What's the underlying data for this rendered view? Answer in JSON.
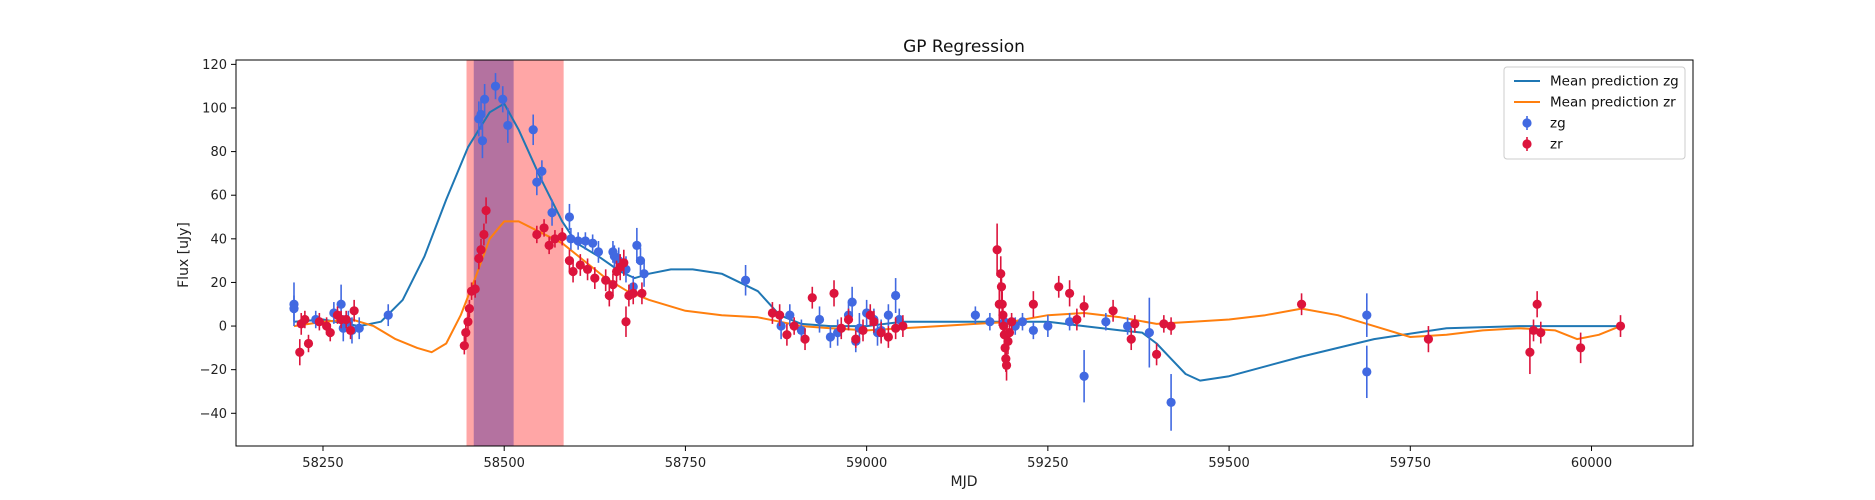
{
  "chart_data": {
    "type": "scatter",
    "title": "GP Regression",
    "xlabel": "MJD",
    "ylabel": "Flux [uJy]",
    "xlim": [
      58130,
      60140
    ],
    "ylim": [
      -55,
      122
    ],
    "xticks": [
      58250,
      58500,
      58750,
      59000,
      59250,
      59500,
      59750,
      60000
    ],
    "yticks": [
      -40,
      -20,
      0,
      20,
      40,
      60,
      80,
      100,
      120
    ],
    "grid": false,
    "legend": {
      "position": "top-right",
      "entries": [
        {
          "label": "Mean prediction zg",
          "kind": "line",
          "color": "#1f77b4"
        },
        {
          "label": "Mean prediction zr",
          "kind": "line",
          "color": "#ff7f0e"
        },
        {
          "label": "zg",
          "kind": "marker",
          "color": "#4169e1"
        },
        {
          "label": "zr",
          "kind": "marker",
          "color": "#dc143c"
        }
      ]
    },
    "spans": [
      {
        "x0": 58448,
        "x1": 58582,
        "color": "#ff6b6b",
        "opacity": 0.6
      },
      {
        "x0": 58458,
        "x1": 58513,
        "color": "#6a3d9a",
        "opacity": 0.5
      }
    ],
    "series": [
      {
        "name": "Mean prediction zg",
        "kind": "line",
        "color": "#1f77b4",
        "points": [
          [
            58210,
            2
          ],
          [
            58250,
            3
          ],
          [
            58300,
            0
          ],
          [
            58330,
            2
          ],
          [
            58360,
            12
          ],
          [
            58390,
            32
          ],
          [
            58420,
            58
          ],
          [
            58450,
            82
          ],
          [
            58480,
            98
          ],
          [
            58500,
            102
          ],
          [
            58520,
            90
          ],
          [
            58550,
            68
          ],
          [
            58580,
            48
          ],
          [
            58600,
            38
          ],
          [
            58630,
            32
          ],
          [
            58660,
            25
          ],
          [
            58680,
            22
          ],
          [
            58700,
            24
          ],
          [
            58730,
            26
          ],
          [
            58760,
            26
          ],
          [
            58800,
            24
          ],
          [
            58850,
            16
          ],
          [
            58880,
            5
          ],
          [
            58910,
            1
          ],
          [
            58950,
            0
          ],
          [
            59000,
            0
          ],
          [
            59050,
            2
          ],
          [
            59100,
            2
          ],
          [
            59150,
            2
          ],
          [
            59200,
            2
          ],
          [
            59250,
            2
          ],
          [
            59300,
            0
          ],
          [
            59350,
            -2
          ],
          [
            59380,
            -3
          ],
          [
            59400,
            -8
          ],
          [
            59420,
            -15
          ],
          [
            59440,
            -22
          ],
          [
            59460,
            -25
          ],
          [
            59500,
            -23
          ],
          [
            59600,
            -14
          ],
          [
            59700,
            -6
          ],
          [
            59800,
            -1
          ],
          [
            59900,
            0
          ],
          [
            60040,
            0
          ]
        ]
      },
      {
        "name": "Mean prediction zr",
        "kind": "line",
        "color": "#ff7f0e",
        "points": [
          [
            58210,
            0
          ],
          [
            58250,
            2
          ],
          [
            58290,
            3
          ],
          [
            58320,
            0
          ],
          [
            58350,
            -6
          ],
          [
            58380,
            -10
          ],
          [
            58400,
            -12
          ],
          [
            58420,
            -8
          ],
          [
            58440,
            5
          ],
          [
            58460,
            22
          ],
          [
            58480,
            40
          ],
          [
            58500,
            48
          ],
          [
            58520,
            48
          ],
          [
            58550,
            43
          ],
          [
            58580,
            38
          ],
          [
            58610,
            30
          ],
          [
            58640,
            22
          ],
          [
            58670,
            16
          ],
          [
            58700,
            12
          ],
          [
            58750,
            7
          ],
          [
            58800,
            5
          ],
          [
            58850,
            4
          ],
          [
            58880,
            2
          ],
          [
            58910,
            0
          ],
          [
            58950,
            -1
          ],
          [
            59000,
            -2
          ],
          [
            59050,
            -1
          ],
          [
            59100,
            0
          ],
          [
            59150,
            1
          ],
          [
            59200,
            2
          ],
          [
            59250,
            5
          ],
          [
            59300,
            6
          ],
          [
            59350,
            4
          ],
          [
            59400,
            1
          ],
          [
            59450,
            2
          ],
          [
            59500,
            3
          ],
          [
            59550,
            5
          ],
          [
            59600,
            8
          ],
          [
            59650,
            5
          ],
          [
            59700,
            0
          ],
          [
            59750,
            -5
          ],
          [
            59800,
            -4
          ],
          [
            59850,
            -2
          ],
          [
            59900,
            -1
          ],
          [
            59950,
            -2
          ],
          [
            59980,
            -6
          ],
          [
            60010,
            -4
          ],
          [
            60040,
            0
          ]
        ]
      },
      {
        "name": "zg",
        "kind": "errorbar",
        "color": "#4169e1",
        "points": [
          [
            58210,
            10,
            10
          ],
          [
            58210,
            8,
            6
          ],
          [
            58240,
            3,
            4
          ],
          [
            58265,
            6,
            5
          ],
          [
            58275,
            10,
            9
          ],
          [
            58278,
            -1,
            6
          ],
          [
            58285,
            2,
            5
          ],
          [
            58290,
            -2,
            6
          ],
          [
            58300,
            -1,
            5
          ],
          [
            58340,
            5,
            5
          ],
          [
            58465,
            95,
            8
          ],
          [
            58468,
            97,
            7
          ],
          [
            58470,
            85,
            8
          ],
          [
            58473,
            104,
            7
          ],
          [
            58488,
            110,
            6
          ],
          [
            58498,
            104,
            6
          ],
          [
            58505,
            92,
            8
          ],
          [
            58540,
            90,
            7
          ],
          [
            58545,
            66,
            6
          ],
          [
            58552,
            71,
            5
          ],
          [
            58566,
            52,
            6
          ],
          [
            58590,
            50,
            6
          ],
          [
            58592,
            40,
            5
          ],
          [
            58602,
            39,
            4
          ],
          [
            58612,
            39,
            4
          ],
          [
            58622,
            38,
            4
          ],
          [
            58630,
            34,
            5
          ],
          [
            58650,
            34,
            5
          ],
          [
            58652,
            32,
            5
          ],
          [
            58658,
            30,
            6
          ],
          [
            58668,
            26,
            6
          ],
          [
            58678,
            18,
            5
          ],
          [
            58683,
            37,
            8
          ],
          [
            58688,
            30,
            6
          ],
          [
            58693,
            24,
            6
          ],
          [
            58833,
            21,
            7
          ],
          [
            58882,
            0,
            6
          ],
          [
            58894,
            5,
            5
          ],
          [
            58910,
            -2,
            5
          ],
          [
            58935,
            3,
            6
          ],
          [
            58950,
            -5,
            5
          ],
          [
            58960,
            -3,
            6
          ],
          [
            58975,
            5,
            6
          ],
          [
            58980,
            11,
            7
          ],
          [
            58985,
            -7,
            5
          ],
          [
            58990,
            -1,
            7
          ],
          [
            59000,
            6,
            6
          ],
          [
            59010,
            3,
            5
          ],
          [
            59015,
            -3,
            6
          ],
          [
            59020,
            -2,
            5
          ],
          [
            59030,
            5,
            5
          ],
          [
            59040,
            14,
            8
          ],
          [
            59045,
            3,
            5
          ],
          [
            59150,
            5,
            4
          ],
          [
            59170,
            2,
            4
          ],
          [
            59190,
            2,
            4
          ],
          [
            59205,
            0,
            4
          ],
          [
            59215,
            2,
            4
          ],
          [
            59230,
            -2,
            4
          ],
          [
            59250,
            0,
            5
          ],
          [
            59280,
            2,
            4
          ],
          [
            59300,
            -23,
            12
          ],
          [
            59330,
            2,
            4
          ],
          [
            59360,
            0,
            4
          ],
          [
            59390,
            -3,
            16
          ],
          [
            59420,
            -35,
            13
          ],
          [
            59690,
            5,
            10
          ],
          [
            59690,
            -21,
            12
          ]
        ]
      },
      {
        "name": "zr",
        "kind": "errorbar",
        "color": "#dc143c",
        "points": [
          [
            58218,
            -12,
            6
          ],
          [
            58220,
            1,
            5
          ],
          [
            58225,
            3,
            4
          ],
          [
            58230,
            -8,
            4
          ],
          [
            58245,
            2,
            4
          ],
          [
            58255,
            0,
            4
          ],
          [
            58260,
            -3,
            4
          ],
          [
            58270,
            5,
            4
          ],
          [
            58275,
            3,
            4
          ],
          [
            58282,
            3,
            4
          ],
          [
            58288,
            -2,
            4
          ],
          [
            58293,
            7,
            5
          ],
          [
            58445,
            -9,
            4
          ],
          [
            58447,
            -3,
            5
          ],
          [
            58450,
            2,
            4
          ],
          [
            58452,
            8,
            4
          ],
          [
            58455,
            16,
            4
          ],
          [
            58460,
            17,
            4
          ],
          [
            58465,
            31,
            5
          ],
          [
            58468,
            35,
            5
          ],
          [
            58472,
            42,
            5
          ],
          [
            58475,
            53,
            6
          ],
          [
            58545,
            42,
            4
          ],
          [
            58555,
            45,
            4
          ],
          [
            58562,
            37,
            4
          ],
          [
            58570,
            40,
            4
          ],
          [
            58580,
            41,
            4
          ],
          [
            58590,
            30,
            5
          ],
          [
            58595,
            25,
            5
          ],
          [
            58605,
            28,
            5
          ],
          [
            58615,
            26,
            5
          ],
          [
            58625,
            22,
            5
          ],
          [
            58640,
            21,
            5
          ],
          [
            58645,
            14,
            5
          ],
          [
            58650,
            19,
            5
          ],
          [
            58655,
            25,
            5
          ],
          [
            58660,
            27,
            6
          ],
          [
            58665,
            29,
            6
          ],
          [
            58668,
            2,
            7
          ],
          [
            58672,
            14,
            5
          ],
          [
            58678,
            15,
            5
          ],
          [
            58690,
            15,
            5
          ],
          [
            58870,
            6,
            5
          ],
          [
            58880,
            5,
            5
          ],
          [
            58890,
            -4,
            5
          ],
          [
            58900,
            0,
            4
          ],
          [
            58915,
            -6,
            5
          ],
          [
            58925,
            13,
            5
          ],
          [
            58955,
            15,
            6
          ],
          [
            58965,
            -1,
            5
          ],
          [
            58975,
            3,
            5
          ],
          [
            58985,
            -6,
            4
          ],
          [
            58995,
            -2,
            5
          ],
          [
            59005,
            5,
            5
          ],
          [
            59010,
            2,
            5
          ],
          [
            59020,
            -3,
            5
          ],
          [
            59030,
            -5,
            5
          ],
          [
            59040,
            -1,
            5
          ],
          [
            59050,
            0,
            5
          ],
          [
            59180,
            35,
            12
          ],
          [
            59183,
            10,
            10
          ],
          [
            59185,
            24,
            8
          ],
          [
            59186,
            18,
            8
          ],
          [
            59187,
            10,
            6
          ],
          [
            59188,
            5,
            5
          ],
          [
            59189,
            0,
            5
          ],
          [
            59190,
            -4,
            5
          ],
          [
            59191,
            -10,
            6
          ],
          [
            59192,
            -15,
            6
          ],
          [
            59193,
            -18,
            7
          ],
          [
            59195,
            -7,
            6
          ],
          [
            59197,
            -3,
            5
          ],
          [
            59200,
            2,
            4
          ],
          [
            59230,
            10,
            6
          ],
          [
            59265,
            18,
            5
          ],
          [
            59280,
            15,
            6
          ],
          [
            59290,
            3,
            5
          ],
          [
            59300,
            9,
            5
          ],
          [
            59340,
            7,
            5
          ],
          [
            59365,
            -6,
            5
          ],
          [
            59370,
            1,
            4
          ],
          [
            59400,
            -13,
            5
          ],
          [
            59410,
            1,
            4
          ],
          [
            59420,
            0,
            4
          ],
          [
            59600,
            10,
            5
          ],
          [
            59775,
            -6,
            6
          ],
          [
            59915,
            -12,
            10
          ],
          [
            59920,
            -2,
            5
          ],
          [
            59925,
            10,
            6
          ],
          [
            59930,
            -3,
            5
          ],
          [
            59985,
            -10,
            7
          ],
          [
            60040,
            0,
            5
          ]
        ]
      }
    ]
  }
}
